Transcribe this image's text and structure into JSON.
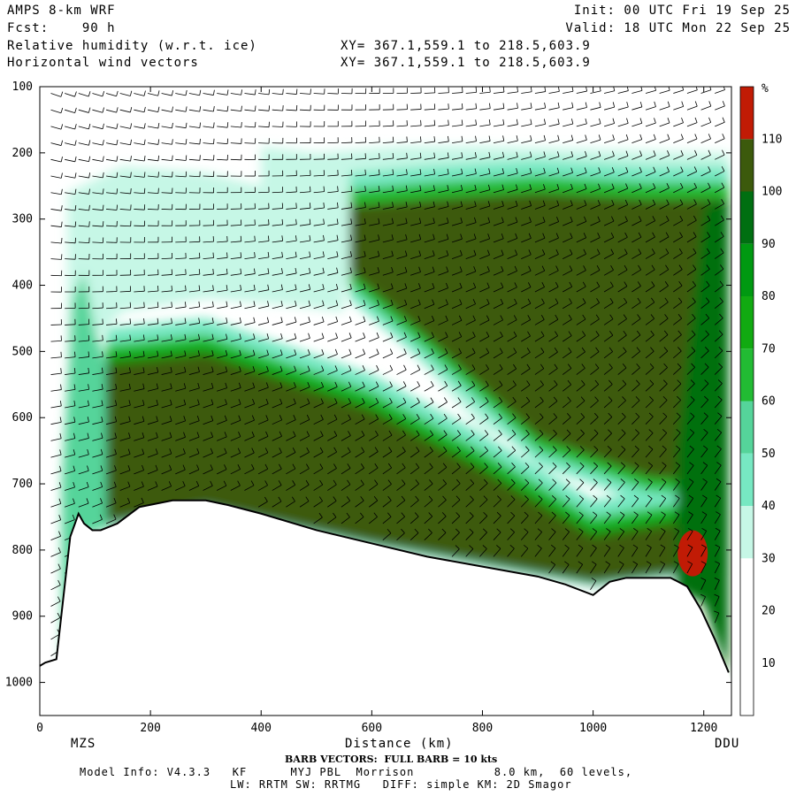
{
  "header": {
    "model": "AMPS 8-km WRF",
    "fcst": "Fcst:    90 h",
    "var1": "Relative humidity (w.r.t. ice)",
    "var2": "Horizontal wind vectors",
    "init": "Init: 00 UTC Fri 19 Sep 25",
    "valid": "Valid: 18 UTC Mon 22 Sep 25",
    "xy1": "XY= 367.1,559.1 to 218.5,603.9",
    "xy2": "XY= 367.1,559.1 to 218.5,603.9"
  },
  "footer": {
    "barb": "BARB VECTORS:  FULL BARB = 10 kts",
    "info1": "Model Info: V4.3.3   KF      MYJ PBL  Morrison           8.0 km,  60 levels,",
    "info2": "LW: RRTM SW: RRTMG   DIFF: simple KM: 2D Smagor"
  },
  "colors": {
    "rh_levels": [
      "#ffffff",
      "#ffffff",
      "#ffffff",
      "#c6f7e6",
      "#77e8c2",
      "#55d49a",
      "#22bb33",
      "#11aa11",
      "#009911",
      "#006f11",
      "#3c5a0c",
      "#c11b05"
    ],
    "terrain_line": "#000000",
    "barb": "#000000"
  },
  "chart_data": {
    "type": "cross-section",
    "title": "Relative humidity (w.r.t. ice) / Horizontal wind vectors",
    "xlabel": "Distance (km)",
    "ylabel": "",
    "xlim": [
      0,
      1250
    ],
    "ylim": [
      1050,
      100
    ],
    "x_ticks": [
      0,
      200,
      400,
      600,
      800,
      1000,
      1200
    ],
    "y_ticks": [
      100,
      200,
      300,
      400,
      500,
      600,
      700,
      800,
      900,
      1000
    ],
    "endpoints": {
      "left": "MZS",
      "right": "DDU"
    },
    "colorbar": {
      "unit": "%",
      "levels": [
        10,
        20,
        30,
        40,
        50,
        60,
        70,
        80,
        90,
        100,
        110
      ]
    },
    "terrain_surface_hpa": {
      "x": [
        0,
        10,
        30,
        55,
        70,
        80,
        95,
        110,
        140,
        180,
        240,
        300,
        340,
        400,
        500,
        600,
        700,
        800,
        900,
        950,
        1000,
        1030,
        1060,
        1100,
        1140,
        1170,
        1195,
        1220,
        1245
      ],
      "p": [
        975,
        970,
        965,
        780,
        745,
        760,
        770,
        770,
        760,
        735,
        725,
        725,
        732,
        745,
        770,
        790,
        810,
        825,
        840,
        852,
        868,
        848,
        842,
        842,
        842,
        855,
        890,
        935,
        985
      ]
    },
    "rh_features": [
      {
        "name": "saturated band (100-110%)",
        "x": [
          120,
          300,
          600,
          800,
          1000,
          1150,
          1245
        ],
        "p_top": [
          520,
          505,
          590,
          680,
          780,
          760,
          270
        ],
        "p_bottom": [
          760,
          735,
          790,
          820,
          850,
          835,
          830
        ]
      },
      {
        "name": "upper saturated layer (100-110%)",
        "x": [
          560,
          700,
          900,
          1100,
          1245
        ],
        "p_top": [
          280,
          270,
          260,
          270,
          270
        ],
        "p_bottom": [
          380,
          480,
          630,
          690,
          700
        ]
      },
      {
        "name": "supersaturation (>110%)",
        "x": [
          1165,
          1185
        ],
        "p_top": [
          780,
          780
        ],
        "p_bottom": [
          835,
          835
        ]
      }
    ],
    "wind_barbs": {
      "full_barb_kts": 10
    }
  }
}
